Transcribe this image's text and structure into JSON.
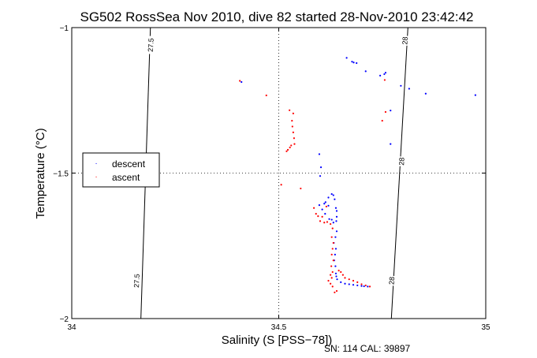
{
  "chart_data": {
    "type": "scatter",
    "title": "SG502 RossSea Nov 2010, dive 82 started 28-Nov-2010 23:42:42",
    "xlabel": "Salinity (S [PSS−78])",
    "ylabel": "Temperature (°C)",
    "xlim": [
      34,
      35
    ],
    "ylim": [
      -2,
      -1
    ],
    "xticks": [
      {
        "value": 34,
        "label": "34"
      },
      {
        "value": 34.5,
        "label": "34.5"
      },
      {
        "value": 35,
        "label": "35"
      }
    ],
    "yticks": [
      {
        "value": -1,
        "label": "−1"
      },
      {
        "value": -1.5,
        "label": "−1.5"
      },
      {
        "value": -2,
        "label": "−2"
      }
    ],
    "grid": "dotted lines at 34.5 and -1.5",
    "footer": "SN: 114  CAL: 39897",
    "legend": {
      "placement": "left-middle",
      "entries": [
        {
          "label": "descent",
          "color": "#0000ff"
        },
        {
          "label": "ascent",
          "color": "#ff0000"
        }
      ]
    },
    "isopycnals": [
      {
        "label": "27.5",
        "points": [
          [
            34.167,
            -2
          ],
          [
            34.19,
            -1
          ]
        ]
      },
      {
        "label": "28",
        "points": [
          [
            34.772,
            -2
          ],
          [
            34.812,
            -1
          ]
        ]
      }
    ],
    "isopycnal_labels": [
      {
        "text": "27.5",
        "x": 34.191,
        "y": -1.06
      },
      {
        "text": "28",
        "x": 34.805,
        "y": -1.045
      },
      {
        "text": "28",
        "x": 34.797,
        "y": -1.46
      },
      {
        "text": "28",
        "x": 34.773,
        "y": -1.87
      },
      {
        "text": "27.5",
        "x": 34.157,
        "y": -1.87
      }
    ],
    "series": [
      {
        "name": "descent",
        "color": "#0000ff",
        "points": [
          [
            34.41,
            -1.187
          ],
          [
            34.664,
            -1.104
          ],
          [
            34.677,
            -1.117
          ],
          [
            34.681,
            -1.12
          ],
          [
            34.688,
            -1.122
          ],
          [
            34.71,
            -1.15
          ],
          [
            34.745,
            -1.165
          ],
          [
            34.755,
            -1.16
          ],
          [
            34.758,
            -1.155
          ],
          [
            34.795,
            -1.2
          ],
          [
            34.815,
            -1.21
          ],
          [
            34.855,
            -1.227
          ],
          [
            34.975,
            -1.232
          ],
          [
            34.77,
            -1.285
          ],
          [
            34.77,
            -1.4
          ],
          [
            34.598,
            -1.435
          ],
          [
            34.602,
            -1.48
          ],
          [
            34.6,
            -1.51
          ],
          [
            34.628,
            -1.572
          ],
          [
            34.632,
            -1.576
          ],
          [
            34.635,
            -1.59
          ],
          [
            34.62,
            -1.584
          ],
          [
            34.613,
            -1.6
          ],
          [
            34.61,
            -1.605
          ],
          [
            34.598,
            -1.61
          ],
          [
            34.605,
            -1.625
          ],
          [
            34.612,
            -1.64
          ],
          [
            34.62,
            -1.612
          ],
          [
            34.638,
            -1.62
          ],
          [
            34.64,
            -1.63
          ],
          [
            34.64,
            -1.65
          ],
          [
            34.639,
            -1.665
          ],
          [
            34.628,
            -1.66
          ],
          [
            34.622,
            -1.658
          ],
          [
            34.632,
            -1.67
          ],
          [
            34.64,
            -1.7
          ],
          [
            34.637,
            -1.72
          ],
          [
            34.633,
            -1.74
          ],
          [
            34.638,
            -1.76
          ],
          [
            34.636,
            -1.78
          ],
          [
            34.634,
            -1.8
          ],
          [
            34.637,
            -1.82
          ],
          [
            34.638,
            -1.845
          ],
          [
            34.639,
            -1.855
          ],
          [
            34.641,
            -1.865
          ],
          [
            34.65,
            -1.875
          ],
          [
            34.66,
            -1.88
          ],
          [
            34.67,
            -1.882
          ],
          [
            34.68,
            -1.884
          ],
          [
            34.69,
            -1.886
          ],
          [
            34.7,
            -1.888
          ],
          [
            34.706,
            -1.889
          ],
          [
            34.715,
            -1.89
          ]
        ]
      },
      {
        "name": "ascent",
        "color": "#ff0000",
        "points": [
          [
            34.406,
            -1.183
          ],
          [
            34.47,
            -1.233
          ],
          [
            34.526,
            -1.284
          ],
          [
            34.535,
            -1.295
          ],
          [
            34.532,
            -1.32
          ],
          [
            34.533,
            -1.34
          ],
          [
            34.535,
            -1.36
          ],
          [
            34.537,
            -1.38
          ],
          [
            34.538,
            -1.4
          ],
          [
            34.53,
            -1.405
          ],
          [
            34.527,
            -1.412
          ],
          [
            34.522,
            -1.42
          ],
          [
            34.519,
            -1.425
          ],
          [
            34.506,
            -1.54
          ],
          [
            34.553,
            -1.553
          ],
          [
            34.75,
            -1.32
          ],
          [
            34.756,
            -1.18
          ],
          [
            34.758,
            -1.29
          ],
          [
            34.615,
            -1.615
          ],
          [
            34.605,
            -1.65
          ],
          [
            34.595,
            -1.648
          ],
          [
            34.59,
            -1.64
          ],
          [
            34.585,
            -1.62
          ],
          [
            34.6,
            -1.665
          ],
          [
            34.61,
            -1.67
          ],
          [
            34.617,
            -1.668
          ],
          [
            34.625,
            -1.675
          ],
          [
            34.63,
            -1.69
          ],
          [
            34.628,
            -1.72
          ],
          [
            34.632,
            -1.74
          ],
          [
            34.63,
            -1.76
          ],
          [
            34.628,
            -1.78
          ],
          [
            34.632,
            -1.8
          ],
          [
            34.627,
            -1.82
          ],
          [
            34.63,
            -1.84
          ],
          [
            34.625,
            -1.85
          ],
          [
            34.628,
            -1.86
          ],
          [
            34.62,
            -1.87
          ],
          [
            34.625,
            -1.88
          ],
          [
            34.63,
            -1.89
          ],
          [
            34.635,
            -1.91
          ],
          [
            34.64,
            -1.905
          ],
          [
            34.645,
            -1.835
          ],
          [
            34.65,
            -1.84
          ],
          [
            34.655,
            -1.85
          ],
          [
            34.66,
            -1.86
          ],
          [
            34.67,
            -1.865
          ],
          [
            34.68,
            -1.87
          ],
          [
            34.69,
            -1.875
          ],
          [
            34.7,
            -1.882
          ],
          [
            34.71,
            -1.886
          ],
          [
            34.72,
            -1.89
          ]
        ]
      }
    ]
  }
}
